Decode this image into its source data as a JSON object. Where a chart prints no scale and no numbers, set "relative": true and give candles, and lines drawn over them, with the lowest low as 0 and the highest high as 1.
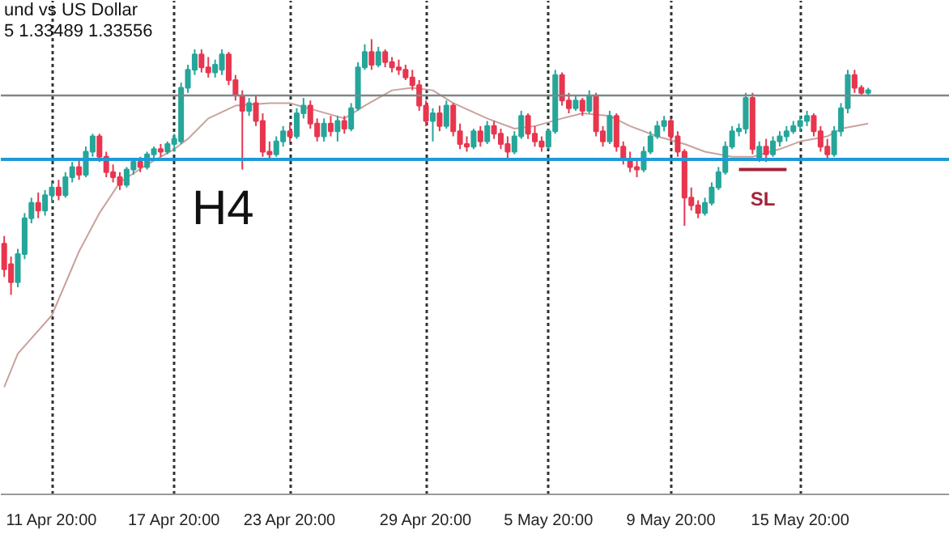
{
  "chart_data": {
    "type": "candlestick",
    "title": "und vs US Dollar",
    "subtitle": "5 1.33489 1.33556",
    "relative": true,
    "categories": [
      null,
      null,
      null,
      null,
      null,
      null,
      null,
      "11 Apr 20:00",
      null,
      null,
      null,
      null,
      null,
      null,
      null,
      null,
      null,
      null,
      null,
      null,
      null,
      null,
      null,
      null,
      null,
      "17 Apr 20:00",
      null,
      null,
      null,
      null,
      null,
      null,
      null,
      null,
      null,
      null,
      null,
      null,
      null,
      null,
      null,
      null,
      "23 Apr 20:00",
      null,
      null,
      null,
      null,
      null,
      null,
      null,
      null,
      null,
      null,
      null,
      null,
      null,
      null,
      null,
      null,
      null,
      null,
      null,
      "29 Apr 20:00",
      null,
      null,
      null,
      null,
      null,
      null,
      null,
      null,
      null,
      null,
      null,
      null,
      null,
      null,
      null,
      null,
      null,
      "5 May 20:00",
      null,
      null,
      null,
      null,
      null,
      null,
      null,
      null,
      null,
      null,
      null,
      null,
      null,
      null,
      null,
      null,
      null,
      "9 May 20:00",
      null,
      null,
      null,
      null,
      null,
      null,
      null,
      null,
      null,
      null,
      null,
      null,
      null,
      null,
      null,
      null,
      null,
      null,
      "15 May 20:00",
      null,
      null,
      null,
      null,
      null,
      null,
      null,
      null,
      null,
      null
    ],
    "ohlc": [
      [
        0.2,
        0.23,
        0.07,
        0.1
      ],
      [
        0.12,
        0.15,
        0.0,
        0.05
      ],
      [
        0.05,
        0.18,
        0.03,
        0.16
      ],
      [
        0.16,
        0.32,
        0.14,
        0.3
      ],
      [
        0.3,
        0.38,
        0.28,
        0.36
      ],
      [
        0.36,
        0.4,
        0.3,
        0.33
      ],
      [
        0.33,
        0.41,
        0.31,
        0.39
      ],
      [
        0.39,
        0.44,
        0.36,
        0.42
      ],
      [
        0.42,
        0.45,
        0.37,
        0.39
      ],
      [
        0.39,
        0.48,
        0.38,
        0.46
      ],
      [
        0.46,
        0.52,
        0.44,
        0.5
      ],
      [
        0.5,
        0.53,
        0.45,
        0.47
      ],
      [
        0.47,
        0.58,
        0.46,
        0.56
      ],
      [
        0.56,
        0.63,
        0.54,
        0.62
      ],
      [
        0.62,
        0.63,
        0.52,
        0.54
      ],
      [
        0.54,
        0.56,
        0.46,
        0.48
      ],
      [
        0.48,
        0.51,
        0.44,
        0.46
      ],
      [
        0.46,
        0.48,
        0.41,
        0.43
      ],
      [
        0.43,
        0.5,
        0.42,
        0.49
      ],
      [
        0.49,
        0.53,
        0.47,
        0.52
      ],
      [
        0.52,
        0.54,
        0.48,
        0.5
      ],
      [
        0.5,
        0.56,
        0.49,
        0.55
      ],
      [
        0.55,
        0.58,
        0.53,
        0.57
      ],
      [
        0.57,
        0.59,
        0.54,
        0.56
      ],
      [
        0.56,
        0.6,
        0.55,
        0.59
      ],
      [
        0.59,
        0.63,
        0.56,
        0.61
      ],
      [
        0.6,
        0.83,
        0.59,
        0.81
      ],
      [
        0.81,
        0.9,
        0.79,
        0.88
      ],
      [
        0.88,
        0.96,
        0.86,
        0.94
      ],
      [
        0.94,
        0.96,
        0.87,
        0.89
      ],
      [
        0.89,
        0.93,
        0.85,
        0.87
      ],
      [
        0.87,
        0.92,
        0.85,
        0.9
      ],
      [
        0.88,
        0.96,
        0.86,
        0.94
      ],
      [
        0.94,
        0.95,
        0.82,
        0.84
      ],
      [
        0.84,
        0.86,
        0.76,
        0.78
      ],
      [
        0.78,
        0.8,
        0.49,
        0.72
      ],
      [
        0.72,
        0.77,
        0.7,
        0.75
      ],
      [
        0.75,
        0.78,
        0.66,
        0.68
      ],
      [
        0.68,
        0.71,
        0.54,
        0.56
      ],
      [
        0.56,
        0.6,
        0.53,
        0.55
      ],
      [
        0.55,
        0.62,
        0.54,
        0.6
      ],
      [
        0.6,
        0.66,
        0.58,
        0.64
      ],
      [
        0.64,
        0.67,
        0.6,
        0.62
      ],
      [
        0.62,
        0.73,
        0.61,
        0.71
      ],
      [
        0.71,
        0.77,
        0.69,
        0.74
      ],
      [
        0.74,
        0.76,
        0.65,
        0.67
      ],
      [
        0.67,
        0.69,
        0.6,
        0.62
      ],
      [
        0.62,
        0.69,
        0.6,
        0.67
      ],
      [
        0.67,
        0.7,
        0.62,
        0.64
      ],
      [
        0.64,
        0.7,
        0.6,
        0.68
      ],
      [
        0.68,
        0.7,
        0.63,
        0.65
      ],
      [
        0.65,
        0.75,
        0.64,
        0.73
      ],
      [
        0.73,
        0.91,
        0.72,
        0.89
      ],
      [
        0.89,
        0.98,
        0.88,
        0.95
      ],
      [
        0.95,
        1.0,
        0.88,
        0.9
      ],
      [
        0.9,
        0.97,
        0.89,
        0.95
      ],
      [
        0.95,
        0.96,
        0.89,
        0.91
      ],
      [
        0.91,
        0.93,
        0.87,
        0.89
      ],
      [
        0.89,
        0.92,
        0.86,
        0.88
      ],
      [
        0.88,
        0.9,
        0.84,
        0.85
      ],
      [
        0.85,
        0.88,
        0.8,
        0.82
      ],
      [
        0.82,
        0.84,
        0.72,
        0.74
      ],
      [
        0.74,
        0.76,
        0.66,
        0.68
      ],
      [
        0.68,
        0.73,
        0.6,
        0.71
      ],
      [
        0.71,
        0.74,
        0.64,
        0.66
      ],
      [
        0.66,
        0.76,
        0.65,
        0.74
      ],
      [
        0.74,
        0.75,
        0.62,
        0.64
      ],
      [
        0.64,
        0.67,
        0.57,
        0.59
      ],
      [
        0.59,
        0.62,
        0.56,
        0.58
      ],
      [
        0.58,
        0.65,
        0.57,
        0.64
      ],
      [
        0.64,
        0.66,
        0.58,
        0.6
      ],
      [
        0.6,
        0.68,
        0.59,
        0.66
      ],
      [
        0.66,
        0.68,
        0.61,
        0.63
      ],
      [
        0.63,
        0.65,
        0.57,
        0.59
      ],
      [
        0.59,
        0.62,
        0.53,
        0.56
      ],
      [
        0.56,
        0.64,
        0.55,
        0.62
      ],
      [
        0.62,
        0.72,
        0.61,
        0.7
      ],
      [
        0.7,
        0.71,
        0.61,
        0.63
      ],
      [
        0.63,
        0.66,
        0.58,
        0.6
      ],
      [
        0.6,
        0.62,
        0.56,
        0.58
      ],
      [
        0.58,
        0.65,
        0.57,
        0.64
      ],
      [
        0.64,
        0.88,
        0.63,
        0.86
      ],
      [
        0.86,
        0.87,
        0.74,
        0.76
      ],
      [
        0.76,
        0.79,
        0.71,
        0.73
      ],
      [
        0.73,
        0.78,
        0.72,
        0.76
      ],
      [
        0.76,
        0.77,
        0.7,
        0.72
      ],
      [
        0.72,
        0.8,
        0.71,
        0.78
      ],
      [
        0.78,
        0.79,
        0.62,
        0.64
      ],
      [
        0.64,
        0.66,
        0.58,
        0.6
      ],
      [
        0.6,
        0.72,
        0.59,
        0.7
      ],
      [
        0.7,
        0.71,
        0.56,
        0.58
      ],
      [
        0.58,
        0.6,
        0.51,
        0.53
      ],
      [
        0.53,
        0.56,
        0.48,
        0.5
      ],
      [
        0.5,
        0.53,
        0.46,
        0.49
      ],
      [
        0.49,
        0.58,
        0.48,
        0.56
      ],
      [
        0.56,
        0.64,
        0.55,
        0.62
      ],
      [
        0.62,
        0.68,
        0.61,
        0.66
      ],
      [
        0.66,
        0.7,
        0.64,
        0.68
      ],
      [
        0.68,
        0.69,
        0.6,
        0.62
      ],
      [
        0.62,
        0.64,
        0.54,
        0.56
      ],
      [
        0.56,
        0.57,
        0.27,
        0.38
      ],
      [
        0.38,
        0.42,
        0.33,
        0.35
      ],
      [
        0.35,
        0.37,
        0.3,
        0.32
      ],
      [
        0.32,
        0.38,
        0.31,
        0.36
      ],
      [
        0.36,
        0.44,
        0.35,
        0.42
      ],
      [
        0.42,
        0.5,
        0.41,
        0.48
      ],
      [
        0.48,
        0.6,
        0.47,
        0.58
      ],
      [
        0.58,
        0.66,
        0.57,
        0.64
      ],
      [
        0.64,
        0.67,
        0.62,
        0.65
      ],
      [
        0.65,
        0.79,
        0.63,
        0.77
      ],
      [
        0.77,
        0.79,
        0.55,
        0.57
      ],
      [
        0.53,
        0.6,
        0.52,
        0.58
      ],
      [
        0.58,
        0.61,
        0.52,
        0.55
      ],
      [
        0.55,
        0.62,
        0.54,
        0.6
      ],
      [
        0.6,
        0.64,
        0.58,
        0.62
      ],
      [
        0.62,
        0.66,
        0.6,
        0.64
      ],
      [
        0.64,
        0.68,
        0.63,
        0.66
      ],
      [
        0.66,
        0.7,
        0.64,
        0.68
      ],
      [
        0.68,
        0.72,
        0.66,
        0.7
      ],
      [
        0.7,
        0.71,
        0.62,
        0.64
      ],
      [
        0.64,
        0.66,
        0.56,
        0.58
      ],
      [
        0.58,
        0.61,
        0.53,
        0.55
      ],
      [
        0.55,
        0.66,
        0.54,
        0.64
      ],
      [
        0.64,
        0.75,
        0.62,
        0.73
      ],
      [
        0.73,
        0.88,
        0.71,
        0.86
      ],
      [
        0.86,
        0.88,
        0.79,
        0.81
      ],
      [
        0.81,
        0.82,
        0.78,
        0.79
      ],
      [
        0.79,
        0.81,
        0.78,
        0.8
      ]
    ],
    "colors": [
      "#e8364f",
      "#e8364f",
      "#26a69a",
      "#26a69a",
      "#26a69a",
      "#e8364f",
      "#26a69a",
      "#26a69a",
      "#e8364f",
      "#26a69a",
      "#26a69a",
      "#e8364f",
      "#26a69a",
      "#26a69a",
      "#e8364f",
      "#e8364f",
      "#e8364f",
      "#e8364f",
      "#26a69a",
      "#26a69a",
      "#e8364f",
      "#26a69a",
      "#26a69a",
      "#e8364f",
      "#26a69a",
      "#26a69a",
      "#26a69a",
      "#26a69a",
      "#26a69a",
      "#e8364f",
      "#e8364f",
      "#26a69a",
      "#26a69a",
      "#e8364f",
      "#e8364f",
      "#e8364f",
      "#26a69a",
      "#e8364f",
      "#e8364f",
      "#e8364f",
      "#26a69a",
      "#26a69a",
      "#e8364f",
      "#26a69a",
      "#26a69a",
      "#e8364f",
      "#e8364f",
      "#26a69a",
      "#e8364f",
      "#26a69a",
      "#e8364f",
      "#26a69a",
      "#26a69a",
      "#26a69a",
      "#e8364f",
      "#26a69a",
      "#e8364f",
      "#e8364f",
      "#e8364f",
      "#e8364f",
      "#e8364f",
      "#e8364f",
      "#e8364f",
      "#26a69a",
      "#e8364f",
      "#26a69a",
      "#e8364f",
      "#e8364f",
      "#e8364f",
      "#26a69a",
      "#e8364f",
      "#26a69a",
      "#e8364f",
      "#e8364f",
      "#e8364f",
      "#26a69a",
      "#26a69a",
      "#e8364f",
      "#e8364f",
      "#e8364f",
      "#26a69a",
      "#26a69a",
      "#e8364f",
      "#e8364f",
      "#26a69a",
      "#e8364f",
      "#26a69a",
      "#e8364f",
      "#e8364f",
      "#26a69a",
      "#e8364f",
      "#e8364f",
      "#e8364f",
      "#e8364f",
      "#26a69a",
      "#26a69a",
      "#26a69a",
      "#26a69a",
      "#e8364f",
      "#e8364f",
      "#e8364f",
      "#e8364f",
      "#e8364f",
      "#26a69a",
      "#26a69a",
      "#26a69a",
      "#26a69a",
      "#26a69a",
      "#26a69a",
      "#26a69a",
      "#e8364f",
      "#26a69a",
      "#e8364f",
      "#26a69a",
      "#26a69a",
      "#26a69a",
      "#26a69a",
      "#26a69a",
      "#26a69a",
      "#e8364f",
      "#e8364f",
      "#e8364f",
      "#26a69a",
      "#26a69a",
      "#26a69a",
      "#e8364f",
      "#e8364f",
      "#26a69a"
    ],
    "series": [
      {
        "type": "line",
        "color": "#c9a29c",
        "values": [
          -0.36,
          null,
          -0.23,
          null,
          null,
          null,
          null,
          -0.08,
          null,
          null,
          null,
          0.17,
          null,
          null,
          0.32,
          null,
          null,
          0.44,
          null,
          null,
          null,
          0.51,
          null,
          null,
          null,
          0.57,
          null,
          0.61,
          null,
          null,
          0.69,
          null,
          null,
          null,
          0.74,
          null,
          null,
          null,
          null,
          0.75,
          null,
          null,
          0.75,
          null,
          null,
          null,
          0.72,
          null,
          null,
          null,
          0.69,
          null,
          null,
          0.74,
          null,
          null,
          null,
          0.8,
          null,
          null,
          0.81,
          null,
          null,
          0.8,
          null,
          null,
          0.75,
          null,
          null,
          null,
          null,
          0.69,
          null,
          null,
          null,
          0.65,
          null,
          null,
          0.66,
          null,
          null,
          null,
          0.69,
          null,
          null,
          0.71,
          null,
          null,
          null,
          0.7,
          null,
          null,
          0.66,
          null,
          null,
          null,
          0.62,
          null,
          null,
          null,
          0.59,
          null,
          null,
          0.56,
          null,
          null,
          null,
          0.54,
          null,
          null,
          0.54,
          null,
          null,
          null,
          0.57,
          null,
          null,
          0.6,
          null,
          null,
          null,
          0.62,
          null,
          0.65,
          null,
          null,
          null,
          0.67
        ]
      }
    ],
    "ref_lines": [
      {
        "axis": "y",
        "value": 0.78,
        "color": "#7d8787"
      },
      {
        "axis": "y",
        "value": 0.53,
        "color": "#1e9bd7"
      }
    ],
    "annotations": [
      "H4",
      "SL"
    ],
    "grid": "x"
  }
}
